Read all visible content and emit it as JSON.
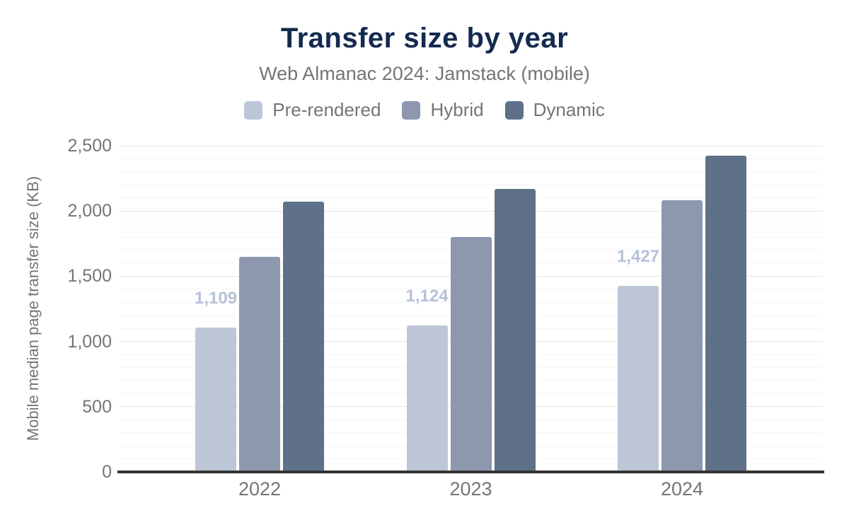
{
  "title": {
    "text": "Transfer size by year",
    "color": "#142a4e"
  },
  "subtitle": {
    "text": "Web Almanac 2024: Jamstack (mobile)",
    "color": "#757575"
  },
  "colors": {
    "pre_rendered": "#bcc6d6",
    "hybrid": "#8d97ae",
    "dynamic": "#5f7089",
    "data_label": "#b6c1d8",
    "axis_line": "#333333",
    "tick_text": "#757575"
  },
  "chart_data": {
    "type": "bar",
    "title": "Transfer size by year",
    "subtitle": "Web Almanac 2024: Jamstack (mobile)",
    "categories": [
      "2022",
      "2023",
      "2024"
    ],
    "series": [
      {
        "name": "Pre-rendered",
        "color": "#bcc6d6",
        "values": [
          1109,
          1124,
          1427
        ],
        "data_labels": [
          "1,109",
          "1,124",
          "1,427"
        ],
        "show_labels": true,
        "label_color": "#b6c1d8"
      },
      {
        "name": "Hybrid",
        "color": "#8d97ae",
        "values": [
          1650,
          1800,
          2085
        ],
        "show_labels": false
      },
      {
        "name": "Dynamic",
        "color": "#5f7089",
        "values": [
          2070,
          2170,
          2425
        ],
        "show_labels": false
      }
    ],
    "xlabel": "",
    "ylabel": "Mobile median page transfer size (KB)",
    "ylim": [
      0,
      2500
    ],
    "yticks": [
      0,
      500,
      1000,
      1500,
      2000,
      2500
    ],
    "ytick_labels": [
      "0",
      "500",
      "1,000",
      "1,500",
      "2,000",
      "2,500"
    ],
    "minor_grid_step": 100,
    "grid": true,
    "legend_position": "top"
  }
}
